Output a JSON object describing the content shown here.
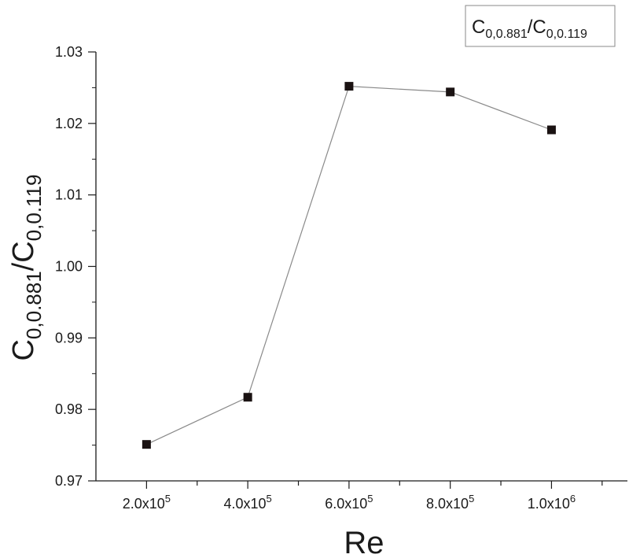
{
  "chart_data": {
    "type": "line",
    "title": "",
    "xlabel": "Re",
    "ylabel": {
      "base": "C",
      "sub1": "0,0.881",
      "slash": "/",
      "base2": "C",
      "sub2": "0,0.119"
    },
    "legend": {
      "position": "top-right",
      "entries": [
        {
          "base": "C",
          "sub1": "0,0.881",
          "slash": "/",
          "base2": "C",
          "sub2": "0,0.119"
        }
      ]
    },
    "xlim": [
      100000,
      1150000
    ],
    "ylim": [
      0.97,
      1.03
    ],
    "x_ticks": [
      {
        "value": 200000,
        "mantissa": "2.0x10",
        "exp": "5"
      },
      {
        "value": 400000,
        "mantissa": "4.0x10",
        "exp": "5"
      },
      {
        "value": 600000,
        "mantissa": "6.0x10",
        "exp": "5"
      },
      {
        "value": 800000,
        "mantissa": "8.0x10",
        "exp": "5"
      },
      {
        "value": 1000000,
        "mantissa": "1.0x10",
        "exp": "6"
      }
    ],
    "y_ticks": [
      "0.97",
      "0.98",
      "0.99",
      "1.00",
      "1.01",
      "1.02",
      "1.03"
    ],
    "grid": false,
    "series": [
      {
        "x": [
          200000,
          400000,
          600000,
          800000,
          1000000
        ],
        "y": [
          0.9751,
          0.9817,
          1.0252,
          1.0244,
          1.0191
        ],
        "marker": "square",
        "color": "#1a1212",
        "line_color": "#8a8a8a"
      }
    ]
  }
}
